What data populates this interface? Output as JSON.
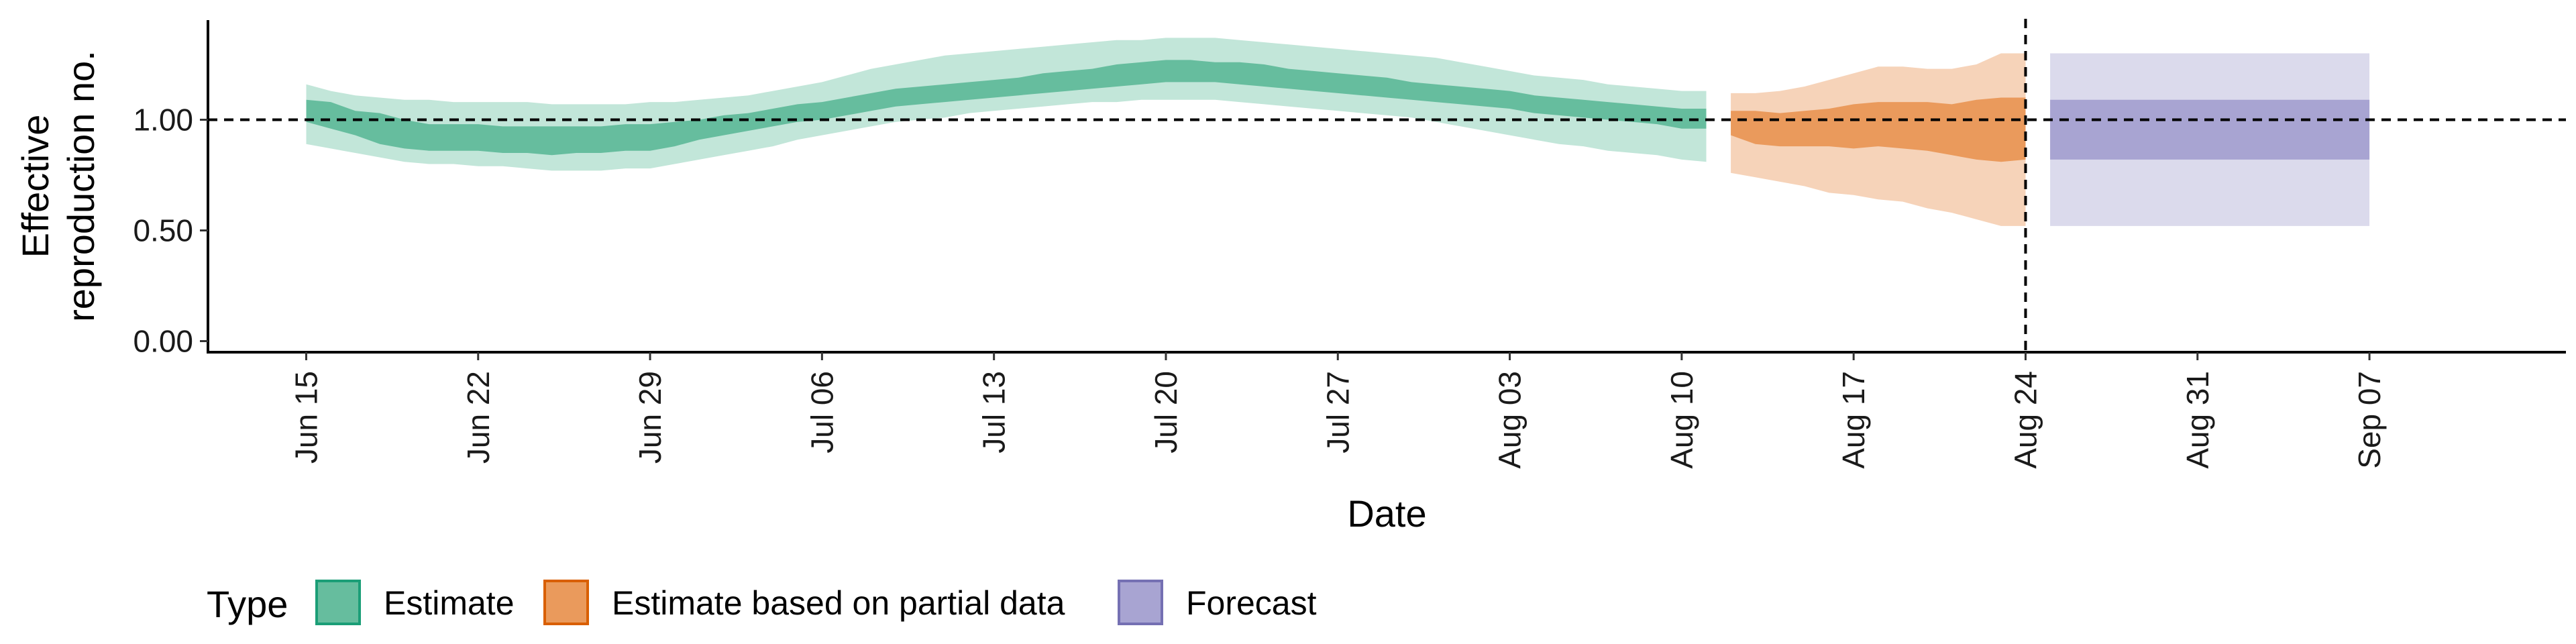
{
  "chart_data": {
    "type": "area",
    "title": "",
    "xlabel": "Date",
    "ylabel_lines": [
      "Effective",
      "reproduction no."
    ],
    "x_ticks": [
      "2020-06-15",
      "2020-06-22",
      "2020-06-29",
      "2020-07-06",
      "2020-07-13",
      "2020-07-20",
      "2020-07-27",
      "2020-08-03",
      "2020-08-10",
      "2020-08-17",
      "2020-08-24",
      "2020-08-31",
      "2020-09-07"
    ],
    "x_tick_labels": [
      "Jun 15",
      "Jun 22",
      "Jun 29",
      "Jul 06",
      "Jul 13",
      "Jul 20",
      "Jul 27",
      "Aug 03",
      "Aug 10",
      "Aug 17",
      "Aug 24",
      "Aug 31",
      "Sep 07"
    ],
    "xlim": [
      "2020-06-11",
      "2020-09-15"
    ],
    "ylim": [
      -0.05,
      1.45
    ],
    "y_ticks": [
      0,
      0.5,
      1.0
    ],
    "y_tick_labels": [
      "0.00",
      "0.50",
      "1.00"
    ],
    "reference_line_y": 1.0,
    "reference_line_x": "2020-08-24",
    "grid": false,
    "legend": {
      "title": "Type",
      "position": "bottom-left",
      "entries": [
        "Estimate",
        "Estimate based on partial data",
        "Forecast"
      ]
    },
    "colors": {
      "Estimate": {
        "inner": "#66bd9e",
        "outer": "#c2e6d9",
        "border": "#1b9e77"
      },
      "Estimate based on partial data": {
        "inner": "#ea9a5c",
        "outer": "#f6d3b9",
        "border": "#d95f02"
      },
      "Forecast": {
        "inner": "#a8a4d2",
        "outer": "#dbdaec",
        "border": "#7570b3"
      }
    },
    "series": [
      {
        "name": "Estimate",
        "dates": [
          "2020-06-15",
          "2020-06-16",
          "2020-06-17",
          "2020-06-18",
          "2020-06-19",
          "2020-06-20",
          "2020-06-21",
          "2020-06-22",
          "2020-06-23",
          "2020-06-24",
          "2020-06-25",
          "2020-06-26",
          "2020-06-27",
          "2020-06-28",
          "2020-06-29",
          "2020-06-30",
          "2020-07-01",
          "2020-07-02",
          "2020-07-03",
          "2020-07-04",
          "2020-07-05",
          "2020-07-06",
          "2020-07-07",
          "2020-07-08",
          "2020-07-09",
          "2020-07-10",
          "2020-07-11",
          "2020-07-12",
          "2020-07-13",
          "2020-07-14",
          "2020-07-15",
          "2020-07-16",
          "2020-07-17",
          "2020-07-18",
          "2020-07-19",
          "2020-07-20",
          "2020-07-21",
          "2020-07-22",
          "2020-07-23",
          "2020-07-24",
          "2020-07-25",
          "2020-07-26",
          "2020-07-27",
          "2020-07-28",
          "2020-07-29",
          "2020-07-30",
          "2020-07-31",
          "2020-08-01",
          "2020-08-02",
          "2020-08-03",
          "2020-08-04",
          "2020-08-05",
          "2020-08-06",
          "2020-08-07",
          "2020-08-08",
          "2020-08-09",
          "2020-08-10",
          "2020-08-11"
        ],
        "upper90": [
          1.16,
          1.13,
          1.11,
          1.1,
          1.09,
          1.09,
          1.08,
          1.08,
          1.08,
          1.08,
          1.07,
          1.07,
          1.07,
          1.07,
          1.08,
          1.08,
          1.09,
          1.1,
          1.11,
          1.13,
          1.15,
          1.17,
          1.2,
          1.23,
          1.25,
          1.27,
          1.29,
          1.3,
          1.31,
          1.32,
          1.33,
          1.34,
          1.35,
          1.36,
          1.36,
          1.37,
          1.37,
          1.37,
          1.36,
          1.35,
          1.34,
          1.33,
          1.32,
          1.31,
          1.3,
          1.29,
          1.28,
          1.26,
          1.24,
          1.22,
          1.2,
          1.19,
          1.18,
          1.16,
          1.15,
          1.14,
          1.13,
          1.13
        ],
        "upper50": [
          1.09,
          1.08,
          1.04,
          1.03,
          1.0,
          0.98,
          0.98,
          0.98,
          0.97,
          0.97,
          0.97,
          0.97,
          0.97,
          0.98,
          0.98,
          0.99,
          1.0,
          1.02,
          1.03,
          1.05,
          1.07,
          1.08,
          1.1,
          1.12,
          1.14,
          1.15,
          1.16,
          1.17,
          1.18,
          1.19,
          1.21,
          1.22,
          1.23,
          1.25,
          1.26,
          1.27,
          1.27,
          1.26,
          1.26,
          1.25,
          1.23,
          1.22,
          1.21,
          1.2,
          1.19,
          1.17,
          1.16,
          1.15,
          1.14,
          1.13,
          1.11,
          1.1,
          1.09,
          1.08,
          1.07,
          1.06,
          1.05,
          1.05
        ],
        "lower50": [
          0.99,
          0.96,
          0.93,
          0.89,
          0.87,
          0.86,
          0.86,
          0.86,
          0.85,
          0.85,
          0.84,
          0.85,
          0.85,
          0.86,
          0.86,
          0.88,
          0.91,
          0.93,
          0.95,
          0.97,
          0.99,
          1.0,
          1.02,
          1.04,
          1.06,
          1.07,
          1.08,
          1.09,
          1.1,
          1.11,
          1.12,
          1.13,
          1.14,
          1.15,
          1.16,
          1.17,
          1.17,
          1.17,
          1.16,
          1.15,
          1.14,
          1.13,
          1.12,
          1.11,
          1.1,
          1.09,
          1.08,
          1.07,
          1.06,
          1.05,
          1.03,
          1.02,
          1.01,
          1.0,
          0.99,
          0.98,
          0.96,
          0.96
        ],
        "lower90": [
          0.89,
          0.87,
          0.85,
          0.83,
          0.81,
          0.8,
          0.8,
          0.79,
          0.79,
          0.78,
          0.77,
          0.77,
          0.77,
          0.78,
          0.78,
          0.8,
          0.82,
          0.84,
          0.86,
          0.88,
          0.91,
          0.93,
          0.95,
          0.97,
          0.99,
          1.0,
          1.01,
          1.03,
          1.04,
          1.05,
          1.06,
          1.07,
          1.08,
          1.08,
          1.09,
          1.09,
          1.09,
          1.09,
          1.08,
          1.07,
          1.06,
          1.05,
          1.04,
          1.03,
          1.02,
          1.01,
          0.99,
          0.97,
          0.95,
          0.93,
          0.91,
          0.89,
          0.88,
          0.86,
          0.85,
          0.84,
          0.82,
          0.81
        ]
      },
      {
        "name": "Estimate based on partial data",
        "dates": [
          "2020-08-12",
          "2020-08-13",
          "2020-08-14",
          "2020-08-15",
          "2020-08-16",
          "2020-08-17",
          "2020-08-18",
          "2020-08-19",
          "2020-08-20",
          "2020-08-21",
          "2020-08-22",
          "2020-08-23",
          "2020-08-24"
        ],
        "upper90": [
          1.12,
          1.12,
          1.13,
          1.15,
          1.18,
          1.21,
          1.24,
          1.24,
          1.23,
          1.23,
          1.25,
          1.3,
          1.3
        ],
        "upper50": [
          1.04,
          1.04,
          1.03,
          1.04,
          1.05,
          1.07,
          1.08,
          1.08,
          1.08,
          1.07,
          1.09,
          1.1,
          1.1
        ],
        "lower50": [
          0.93,
          0.89,
          0.88,
          0.88,
          0.88,
          0.87,
          0.88,
          0.87,
          0.86,
          0.84,
          0.82,
          0.81,
          0.82
        ],
        "lower90": [
          0.76,
          0.74,
          0.72,
          0.7,
          0.67,
          0.66,
          0.64,
          0.63,
          0.6,
          0.58,
          0.55,
          0.52,
          0.52
        ]
      },
      {
        "name": "Forecast",
        "dates": [
          "2020-08-25",
          "2020-09-07"
        ],
        "upper90": [
          1.3,
          1.3
        ],
        "upper50": [
          1.09,
          1.09
        ],
        "lower50": [
          0.82,
          0.82
        ],
        "lower90": [
          0.52,
          0.52
        ]
      }
    ]
  }
}
